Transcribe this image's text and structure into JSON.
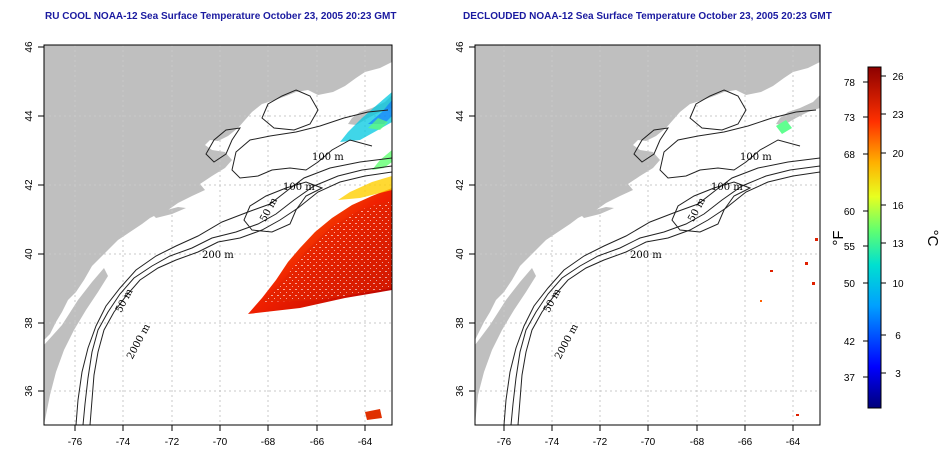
{
  "titles": {
    "left": "RU COOL NOAA-12 Sea Surface Temperature October 23, 2005 20:23 GMT",
    "right": "DECLOUDED NOAA-12 Sea Surface Temperature October 23, 2005 20:23 GMT"
  },
  "axes": {
    "lat_ticks": [
      "46",
      "44",
      "42",
      "40",
      "38",
      "36"
    ],
    "lon_ticks": [
      "-76",
      "-74",
      "-72",
      "-70",
      "-68",
      "-66",
      "-64"
    ]
  },
  "contour_labels": {
    "left": [
      "100 m",
      "100 m",
      "50 m",
      "200 m",
      "50 m",
      "2000 m"
    ],
    "right": [
      "100 m",
      "100 m",
      "50 m",
      "200 m",
      "50 m",
      "2000 m"
    ]
  },
  "colorbar": {
    "fahrenheit_label": "°F",
    "celsius_label": "°C",
    "fahrenheit_ticks": [
      "78",
      "73",
      "68",
      "60",
      "55",
      "50",
      "42",
      "37"
    ],
    "celsius_ticks": [
      "26",
      "23",
      "20",
      "16",
      "13",
      "10",
      "6",
      "3"
    ]
  },
  "colors": {
    "land": "#bfbfbf",
    "ocean": "#ffffff",
    "title": "#1a1aa0",
    "grid": "#c8c8c8"
  }
}
